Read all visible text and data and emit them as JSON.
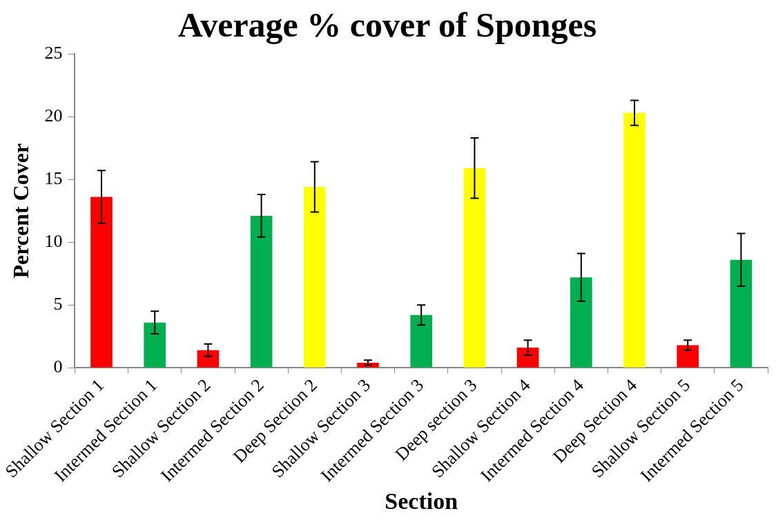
{
  "chart_data": {
    "type": "bar",
    "title": "Average % cover of Sponges",
    "xlabel": "Section",
    "ylabel": "Percent Cover",
    "categories": [
      "Shallow Section 1",
      "Intermed Section 1",
      "Shallow Section 2",
      "Intermed Section 2",
      "Deep Section 2",
      "Shallow Section 3",
      "Intermed Section 3",
      "Deep section 3",
      "Shallow Section 4",
      "Intermed Section 4",
      "Deep Section 4",
      "Shallow Section 5",
      "Intermed Section 5"
    ],
    "values": [
      13.6,
      3.6,
      1.4,
      12.1,
      14.4,
      0.4,
      4.2,
      15.9,
      1.6,
      7.2,
      20.3,
      1.8,
      8.6
    ],
    "errors": [
      2.1,
      0.9,
      0.5,
      1.7,
      2.0,
      0.2,
      0.8,
      2.4,
      0.6,
      1.9,
      1.0,
      0.4,
      2.1
    ],
    "colors": [
      "#ff0000",
      "#00b050",
      "#ff0000",
      "#00b050",
      "#ffff00",
      "#ff0000",
      "#00b050",
      "#ffff00",
      "#ff0000",
      "#00b050",
      "#ffff00",
      "#ff0000",
      "#00b050"
    ],
    "ylim": [
      0,
      25
    ],
    "yticks": [
      0,
      5,
      10,
      15,
      20,
      25
    ],
    "grid": false,
    "legend": false
  }
}
